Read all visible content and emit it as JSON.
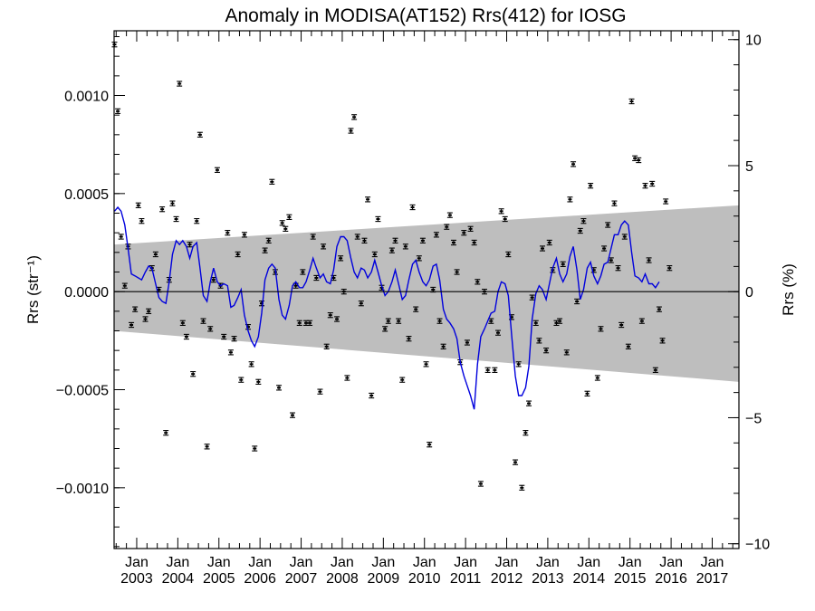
{
  "chart_data": {
    "type": "scatter",
    "title": "Anomaly in MODISA(AT152) Rrs(412) for IOSG",
    "ylabel_left": "Rrs (str⁻¹)",
    "ylabel_right": "Rrs (%)",
    "xlabel": "",
    "xlim": [
      2002.45,
      2017.65
    ],
    "ylim": [
      -0.00131,
      0.00133
    ],
    "ylim_right": [
      -10.19,
      10.35
    ],
    "grid": false,
    "legend": "none",
    "colors": {
      "line": "#0000dd",
      "band": "#bebebe",
      "points": "#000000",
      "zero_line": "#000000"
    },
    "x_ticks": [
      {
        "x": 2003,
        "month": "Jan",
        "year": "2003"
      },
      {
        "x": 2004,
        "month": "Jan",
        "year": "2004"
      },
      {
        "x": 2005,
        "month": "Jan",
        "year": "2005"
      },
      {
        "x": 2006,
        "month": "Jan",
        "year": "2006"
      },
      {
        "x": 2007,
        "month": "Jan",
        "year": "2007"
      },
      {
        "x": 2008,
        "month": "Jan",
        "year": "2008"
      },
      {
        "x": 2009,
        "month": "Jan",
        "year": "2009"
      },
      {
        "x": 2010,
        "month": "Jan",
        "year": "2010"
      },
      {
        "x": 2011,
        "month": "Jan",
        "year": "2011"
      },
      {
        "x": 2012,
        "month": "Jan",
        "year": "2012"
      },
      {
        "x": 2013,
        "month": "Jan",
        "year": "2013"
      },
      {
        "x": 2014,
        "month": "Jan",
        "year": "2014"
      },
      {
        "x": 2015,
        "month": "Jan",
        "year": "2015"
      },
      {
        "x": 2016,
        "month": "Jan",
        "year": "2016"
      },
      {
        "x": 2017,
        "month": "Jan",
        "year": "2017"
      }
    ],
    "y_ticks_left": [
      {
        "v": 0.001,
        "label": "0.0010"
      },
      {
        "v": 0.0005,
        "label": "0.0005"
      },
      {
        "v": 0.0,
        "label": "0.0000"
      },
      {
        "v": -0.0005,
        "label": "−0.0005"
      },
      {
        "v": -0.001,
        "label": "−0.0010"
      }
    ],
    "y_ticks_right": [
      {
        "v": 10,
        "label": "10"
      },
      {
        "v": 5,
        "label": "5"
      },
      {
        "v": 0,
        "label": "0"
      },
      {
        "v": -5,
        "label": "−5"
      },
      {
        "v": -10,
        "label": "−10"
      }
    ],
    "band": {
      "start": {
        "x": 2002.45,
        "upper": 0.00024,
        "lower": -0.0002
      },
      "end": {
        "x": 2017.65,
        "upper": 0.00044,
        "lower": -0.00046
      }
    },
    "points": [
      [
        2002.46,
        0.00126
      ],
      [
        2002.54,
        0.00092
      ],
      [
        2002.62,
        0.00028
      ],
      [
        2002.71,
        3e-05
      ],
      [
        2002.79,
        0.00023
      ],
      [
        2002.87,
        -0.00017
      ],
      [
        2002.96,
        -9e-05
      ],
      [
        2003.04,
        0.00044
      ],
      [
        2003.12,
        0.00036
      ],
      [
        2003.21,
        -0.00014
      ],
      [
        2003.29,
        -0.0001
      ],
      [
        2003.37,
        0.00012
      ],
      [
        2003.46,
        0.00019
      ],
      [
        2003.54,
        1e-05
      ],
      [
        2003.62,
        0.00042
      ],
      [
        2003.71,
        -0.00072
      ],
      [
        2003.79,
        6e-05
      ],
      [
        2003.87,
        0.00045
      ],
      [
        2003.96,
        0.00037
      ],
      [
        2004.04,
        0.00106
      ],
      [
        2004.12,
        -0.00016
      ],
      [
        2004.21,
        -0.00023
      ],
      [
        2004.29,
        0.00024
      ],
      [
        2004.37,
        -0.00042
      ],
      [
        2004.46,
        0.00036
      ],
      [
        2004.54,
        0.0008
      ],
      [
        2004.62,
        -0.00015
      ],
      [
        2004.71,
        -0.00079
      ],
      [
        2004.79,
        -0.00019
      ],
      [
        2004.87,
        6e-05
      ],
      [
        2004.96,
        0.00062
      ],
      [
        2005.04,
        3e-05
      ],
      [
        2005.12,
        -0.00023
      ],
      [
        2005.21,
        0.0003
      ],
      [
        2005.29,
        -0.00031
      ],
      [
        2005.37,
        -0.00024
      ],
      [
        2005.46,
        0.00019
      ],
      [
        2005.54,
        -0.00045
      ],
      [
        2005.62,
        0.00029
      ],
      [
        2005.71,
        -0.00018
      ],
      [
        2005.79,
        -0.00037
      ],
      [
        2005.87,
        -0.0008
      ],
      [
        2005.96,
        -0.00046
      ],
      [
        2006.04,
        -6e-05
      ],
      [
        2006.12,
        0.00021
      ],
      [
        2006.21,
        0.00026
      ],
      [
        2006.29,
        0.00056
      ],
      [
        2006.37,
        0.0001
      ],
      [
        2006.46,
        -0.00049
      ],
      [
        2006.54,
        0.00035
      ],
      [
        2006.62,
        0.00032
      ],
      [
        2006.71,
        0.00038
      ],
      [
        2006.79,
        -0.00063
      ],
      [
        2006.87,
        3e-05
      ],
      [
        2006.96,
        -0.00016
      ],
      [
        2007.04,
        0.0001
      ],
      [
        2007.12,
        -0.00016
      ],
      [
        2007.21,
        -0.00016
      ],
      [
        2007.29,
        0.00028
      ],
      [
        2007.37,
        7e-05
      ],
      [
        2007.46,
        -0.00051
      ],
      [
        2007.54,
        0.00023
      ],
      [
        2007.62,
        -0.00028
      ],
      [
        2007.71,
        -0.00012
      ],
      [
        2007.79,
        7e-05
      ],
      [
        2007.87,
        -0.00014
      ],
      [
        2007.96,
        0.00017
      ],
      [
        2008.04,
        0.0
      ],
      [
        2008.12,
        -0.00044
      ],
      [
        2008.21,
        0.00082
      ],
      [
        2008.29,
        0.00089
      ],
      [
        2008.37,
        0.00028
      ],
      [
        2008.46,
        -6e-05
      ],
      [
        2008.54,
        0.00026
      ],
      [
        2008.62,
        0.00047
      ],
      [
        2008.71,
        -0.00053
      ],
      [
        2008.79,
        0.00019
      ],
      [
        2008.87,
        0.00037
      ],
      [
        2008.96,
        2e-05
      ],
      [
        2009.04,
        -0.00019
      ],
      [
        2009.12,
        -0.00015
      ],
      [
        2009.21,
        0.00021
      ],
      [
        2009.29,
        0.00026
      ],
      [
        2009.37,
        -0.00015
      ],
      [
        2009.46,
        -0.00045
      ],
      [
        2009.54,
        0.00023
      ],
      [
        2009.62,
        -0.00024
      ],
      [
        2009.71,
        0.00043
      ],
      [
        2009.79,
        -9e-05
      ],
      [
        2009.87,
        0.00017
      ],
      [
        2009.96,
        0.00026
      ],
      [
        2010.04,
        -0.00037
      ],
      [
        2010.12,
        -0.00078
      ],
      [
        2010.21,
        1e-05
      ],
      [
        2010.29,
        0.00029
      ],
      [
        2010.37,
        -0.00015
      ],
      [
        2010.46,
        -0.00028
      ],
      [
        2010.54,
        0.00033
      ],
      [
        2010.62,
        0.00039
      ],
      [
        2010.71,
        0.00025
      ],
      [
        2010.79,
        0.0001
      ],
      [
        2010.87,
        -0.00036
      ],
      [
        2010.96,
        0.0003
      ],
      [
        2011.04,
        -0.00026
      ],
      [
        2011.12,
        0.00032
      ],
      [
        2011.21,
        0.00025
      ],
      [
        2011.29,
        5e-05
      ],
      [
        2011.37,
        -0.00098
      ],
      [
        2011.46,
        0.0
      ],
      [
        2011.54,
        -0.0004
      ],
      [
        2011.62,
        -0.00015
      ],
      [
        2011.71,
        -0.0004
      ],
      [
        2011.79,
        -0.00021
      ],
      [
        2011.87,
        0.00041
      ],
      [
        2011.96,
        0.00037
      ],
      [
        2012.04,
        0.00019
      ],
      [
        2012.12,
        -0.00013
      ],
      [
        2012.21,
        -0.00087
      ],
      [
        2012.29,
        -0.00037
      ],
      [
        2012.37,
        -0.001
      ],
      [
        2012.46,
        -0.00072
      ],
      [
        2012.54,
        -0.00057
      ],
      [
        2012.62,
        -3e-05
      ],
      [
        2012.71,
        -0.00016
      ],
      [
        2012.79,
        -0.00025
      ],
      [
        2012.87,
        0.00022
      ],
      [
        2012.96,
        -0.0003
      ],
      [
        2013.04,
        0.00025
      ],
      [
        2013.12,
        0.00011
      ],
      [
        2013.21,
        -0.00016
      ],
      [
        2013.29,
        -0.00015
      ],
      [
        2013.37,
        0.00014
      ],
      [
        2013.46,
        -0.00031
      ],
      [
        2013.54,
        0.00047
      ],
      [
        2013.62,
        0.00065
      ],
      [
        2013.71,
        -5e-05
      ],
      [
        2013.79,
        0.00031
      ],
      [
        2013.87,
        0.00036
      ],
      [
        2013.96,
        -0.00052
      ],
      [
        2014.04,
        0.00054
      ],
      [
        2014.12,
        0.00011
      ],
      [
        2014.21,
        -0.00044
      ],
      [
        2014.29,
        -0.00019
      ],
      [
        2014.37,
        0.00022
      ],
      [
        2014.46,
        0.00034
      ],
      [
        2014.54,
        0.00016
      ],
      [
        2014.62,
        0.00045
      ],
      [
        2014.71,
        0.00012
      ],
      [
        2014.79,
        -0.00017
      ],
      [
        2014.87,
        0.00028
      ],
      [
        2014.96,
        -0.00028
      ],
      [
        2015.04,
        0.00097
      ],
      [
        2015.12,
        0.00068
      ],
      [
        2015.21,
        0.00067
      ],
      [
        2015.29,
        -0.00015
      ],
      [
        2015.37,
        0.00054
      ],
      [
        2015.46,
        0.00016
      ],
      [
        2015.54,
        0.00055
      ],
      [
        2015.62,
        -0.0004
      ],
      [
        2015.71,
        -9e-05
      ],
      [
        2015.79,
        -0.00025
      ],
      [
        2015.87,
        0.00046
      ],
      [
        2015.96,
        0.00012
      ]
    ],
    "smoothed": [
      [
        2002.46,
        0.00041
      ],
      [
        2002.54,
        0.00043
      ],
      [
        2002.62,
        0.00041
      ],
      [
        2002.71,
        0.00034
      ],
      [
        2002.79,
        0.00022
      ],
      [
        2002.87,
        9e-05
      ],
      [
        2002.96,
        8e-05
      ],
      [
        2003.04,
        7e-05
      ],
      [
        2003.12,
        6e-05
      ],
      [
        2003.21,
        0.0001
      ],
      [
        2003.29,
        0.00013
      ],
      [
        2003.37,
        0.00012
      ],
      [
        2003.46,
        4e-05
      ],
      [
        2003.54,
        -3e-05
      ],
      [
        2003.62,
        -5e-05
      ],
      [
        2003.71,
        -6e-05
      ],
      [
        2003.79,
        5e-05
      ],
      [
        2003.87,
        0.00019
      ],
      [
        2003.96,
        0.00026
      ],
      [
        2004.04,
        0.00024
      ],
      [
        2004.12,
        0.00026
      ],
      [
        2004.21,
        0.00023
      ],
      [
        2004.29,
        0.00017
      ],
      [
        2004.37,
        0.00023
      ],
      [
        2004.46,
        0.00025
      ],
      [
        2004.54,
        0.00012
      ],
      [
        2004.62,
        -2e-05
      ],
      [
        2004.71,
        -5e-05
      ],
      [
        2004.79,
        5e-05
      ],
      [
        2004.87,
        0.00012
      ],
      [
        2004.96,
        5e-05
      ],
      [
        2005.04,
        3e-05
      ],
      [
        2005.12,
        4e-05
      ],
      [
        2005.21,
        3e-05
      ],
      [
        2005.29,
        -8e-05
      ],
      [
        2005.37,
        -7e-05
      ],
      [
        2005.46,
        -3e-05
      ],
      [
        2005.54,
        1e-05
      ],
      [
        2005.62,
        -0.00012
      ],
      [
        2005.71,
        -0.0002
      ],
      [
        2005.79,
        -0.00025
      ],
      [
        2005.87,
        -0.00028
      ],
      [
        2005.96,
        -0.00023
      ],
      [
        2006.04,
        -0.00011
      ],
      [
        2006.12,
        6e-05
      ],
      [
        2006.21,
        0.00012
      ],
      [
        2006.29,
        0.00014
      ],
      [
        2006.37,
        0.00012
      ],
      [
        2006.46,
        -4e-05
      ],
      [
        2006.54,
        -0.00012
      ],
      [
        2006.62,
        -0.00014
      ],
      [
        2006.71,
        -7e-05
      ],
      [
        2006.79,
        3e-05
      ],
      [
        2006.87,
        5e-05
      ],
      [
        2006.96,
        2e-05
      ],
      [
        2007.04,
        2e-05
      ],
      [
        2007.12,
        5e-05
      ],
      [
        2007.21,
        0.00011
      ],
      [
        2007.29,
        0.00017
      ],
      [
        2007.37,
        0.00012
      ],
      [
        2007.46,
        7e-05
      ],
      [
        2007.54,
        9e-05
      ],
      [
        2007.62,
        5e-05
      ],
      [
        2007.71,
        4e-05
      ],
      [
        2007.79,
        0.00011
      ],
      [
        2007.87,
        0.00023
      ],
      [
        2007.96,
        0.00028
      ],
      [
        2008.04,
        0.00028
      ],
      [
        2008.12,
        0.00026
      ],
      [
        2008.21,
        0.00017
      ],
      [
        2008.29,
        0.0001
      ],
      [
        2008.37,
        7e-05
      ],
      [
        2008.46,
        0.00012
      ],
      [
        2008.54,
        0.00011
      ],
      [
        2008.62,
        7e-05
      ],
      [
        2008.71,
        0.0001
      ],
      [
        2008.79,
        0.00016
      ],
      [
        2008.87,
        0.0001
      ],
      [
        2008.96,
        3e-05
      ],
      [
        2009.04,
        -2e-05
      ],
      [
        2009.12,
        0.0
      ],
      [
        2009.21,
        5e-05
      ],
      [
        2009.29,
        0.00011
      ],
      [
        2009.37,
        4e-05
      ],
      [
        2009.46,
        -4e-05
      ],
      [
        2009.54,
        -2e-05
      ],
      [
        2009.62,
        6e-05
      ],
      [
        2009.71,
        0.00014
      ],
      [
        2009.79,
        0.00016
      ],
      [
        2009.87,
        0.0001
      ],
      [
        2009.96,
        5e-05
      ],
      [
        2010.04,
        3e-05
      ],
      [
        2010.12,
        6e-05
      ],
      [
        2010.21,
        0.00013
      ],
      [
        2010.29,
        0.00014
      ],
      [
        2010.37,
        6e-05
      ],
      [
        2010.46,
        -9e-05
      ],
      [
        2010.54,
        -0.00014
      ],
      [
        2010.62,
        -0.00016
      ],
      [
        2010.71,
        -0.00019
      ],
      [
        2010.79,
        -0.00024
      ],
      [
        2010.87,
        -0.00036
      ],
      [
        2010.96,
        -0.00043
      ],
      [
        2011.04,
        -0.00048
      ],
      [
        2011.12,
        -0.00053
      ],
      [
        2011.21,
        -0.0006
      ],
      [
        2011.29,
        -0.00037
      ],
      [
        2011.37,
        -0.00023
      ],
      [
        2011.46,
        -0.00019
      ],
      [
        2011.54,
        -0.00015
      ],
      [
        2011.62,
        -0.00011
      ],
      [
        2011.71,
        -0.0001
      ],
      [
        2011.79,
        -0.0
      ],
      [
        2011.87,
        5e-05
      ],
      [
        2011.96,
        4e-05
      ],
      [
        2012.04,
        -2e-05
      ],
      [
        2012.12,
        -0.00022
      ],
      [
        2012.21,
        -0.00043
      ],
      [
        2012.29,
        -0.00053
      ],
      [
        2012.37,
        -0.00053
      ],
      [
        2012.46,
        -0.00049
      ],
      [
        2012.54,
        -0.00038
      ],
      [
        2012.62,
        -0.00014
      ],
      [
        2012.71,
        -1e-05
      ],
      [
        2012.79,
        3e-05
      ],
      [
        2012.87,
        1e-05
      ],
      [
        2012.96,
        -4e-05
      ],
      [
        2013.04,
        4e-05
      ],
      [
        2013.12,
        0.00012
      ],
      [
        2013.21,
        0.00017
      ],
      [
        2013.29,
        9e-05
      ],
      [
        2013.37,
        5e-05
      ],
      [
        2013.46,
        9e-05
      ],
      [
        2013.54,
        0.00018
      ],
      [
        2013.62,
        0.00023
      ],
      [
        2013.71,
        0.00011
      ],
      [
        2013.79,
        -4e-05
      ],
      [
        2013.87,
        1e-05
      ],
      [
        2013.96,
        0.00012
      ],
      [
        2014.04,
        0.00015
      ],
      [
        2014.12,
        8e-05
      ],
      [
        2014.21,
        4e-05
      ],
      [
        2014.29,
        8e-05
      ],
      [
        2014.37,
        0.00014
      ],
      [
        2014.46,
        0.00015
      ],
      [
        2014.54,
        0.00022
      ],
      [
        2014.62,
        0.00029
      ],
      [
        2014.71,
        0.00029
      ],
      [
        2014.79,
        0.00034
      ],
      [
        2014.87,
        0.00036
      ],
      [
        2014.96,
        0.00034
      ],
      [
        2015.04,
        0.0002
      ],
      [
        2015.12,
        8e-05
      ],
      [
        2015.21,
        7e-05
      ],
      [
        2015.29,
        5e-05
      ],
      [
        2015.37,
        9e-05
      ],
      [
        2015.46,
        4e-05
      ],
      [
        2015.54,
        4e-05
      ],
      [
        2015.62,
        2e-05
      ],
      [
        2015.71,
        5e-05
      ]
    ]
  }
}
